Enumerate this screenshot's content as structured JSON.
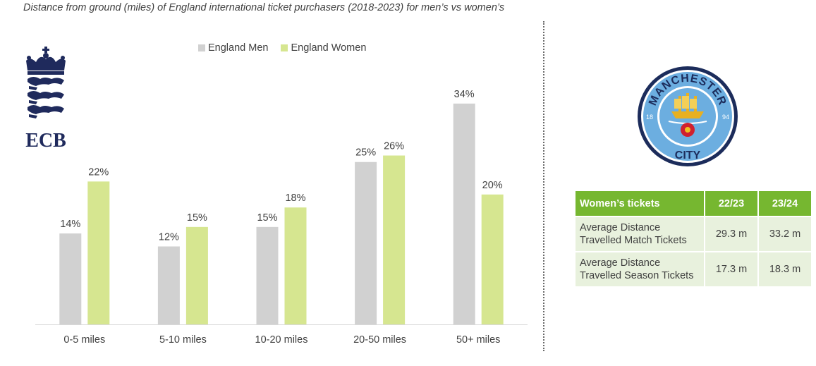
{
  "caption": "Distance from ground (miles) of England international ticket purchasers (2018-2023) for men’s vs women’s",
  "ecb_logo": {
    "text": "ECB",
    "icon": "ecb-crown-lions-logo"
  },
  "mcfc_logo": {
    "top_text": "MANCHESTER",
    "bottom_text": "CITY",
    "year_left": "18",
    "year_right": "94",
    "icon": "manchester-city-crest"
  },
  "colors": {
    "men": "#d1d1d1",
    "women": "#d6e690",
    "table_header": "#76b730",
    "table_cell": "#e8f1dd",
    "mcfc_blue": "#6caee0",
    "mcfc_navy": "#1c2c5b"
  },
  "chart_data": {
    "type": "bar",
    "categories": [
      "0-5 miles",
      "5-10 miles",
      "10-20 miles",
      "20-50 miles",
      "50+ miles"
    ],
    "series": [
      {
        "name": "England Men",
        "values": [
          14,
          12,
          15,
          25,
          34
        ]
      },
      {
        "name": "England Women",
        "values": [
          22,
          15,
          18,
          26,
          20
        ]
      }
    ],
    "value_suffix": "%",
    "ylim": [
      0,
      38
    ],
    "grid": false,
    "legend": "top-center"
  },
  "table": {
    "headers": [
      "Women’s tickets",
      "22/23",
      "23/24"
    ],
    "rows": [
      {
        "label_line1": "Average Distance",
        "label_line2": "Travelled Match Tickets",
        "v1": "29.3 m",
        "v2": "33.2 m"
      },
      {
        "label_line1": "Average Distance",
        "label_line2": "Travelled Season Tickets",
        "v1": "17.3 m",
        "v2": "18.3 m"
      }
    ]
  }
}
